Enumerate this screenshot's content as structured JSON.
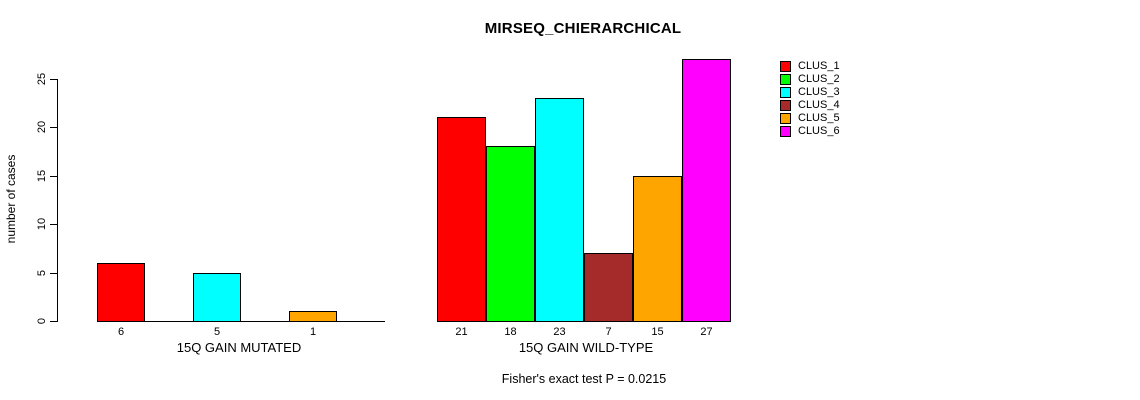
{
  "chart_data": {
    "type": "bar",
    "title": "MIRSEQ_CHIERARCHICAL",
    "ylabel": "number of cases",
    "ylim": [
      0,
      25
    ],
    "yticks": [
      0,
      5,
      10,
      15,
      20,
      25
    ],
    "grid": false,
    "legend_position": "right",
    "legend": [
      {
        "label": "CLUS_1",
        "color": "#FF0000"
      },
      {
        "label": "CLUS_2",
        "color": "#00FF00"
      },
      {
        "label": "CLUS_3",
        "color": "#00FFFF"
      },
      {
        "label": "CLUS_4",
        "color": "#A52A2A"
      },
      {
        "label": "CLUS_5",
        "color": "#FFA500"
      },
      {
        "label": "CLUS_6",
        "color": "#FF00FF"
      }
    ],
    "groups": [
      {
        "label": "15Q GAIN MUTATED",
        "series": [
          "CLUS_1",
          "CLUS_2",
          "CLUS_3",
          "CLUS_4",
          "CLUS_5",
          "CLUS_6"
        ],
        "values": [
          6,
          0,
          5,
          0,
          1,
          0
        ],
        "bar_labels": [
          "6",
          "",
          "5",
          "",
          "1",
          ""
        ]
      },
      {
        "label": "15Q GAIN WILD-TYPE",
        "series": [
          "CLUS_1",
          "CLUS_2",
          "CLUS_3",
          "CLUS_4",
          "CLUS_5",
          "CLUS_6"
        ],
        "values": [
          21,
          18,
          23,
          7,
          15,
          27
        ],
        "bar_labels": [
          "21",
          "18",
          "23",
          "7",
          "15",
          "27"
        ]
      }
    ],
    "annotation": "Fisher's exact test P = 0.0215"
  }
}
